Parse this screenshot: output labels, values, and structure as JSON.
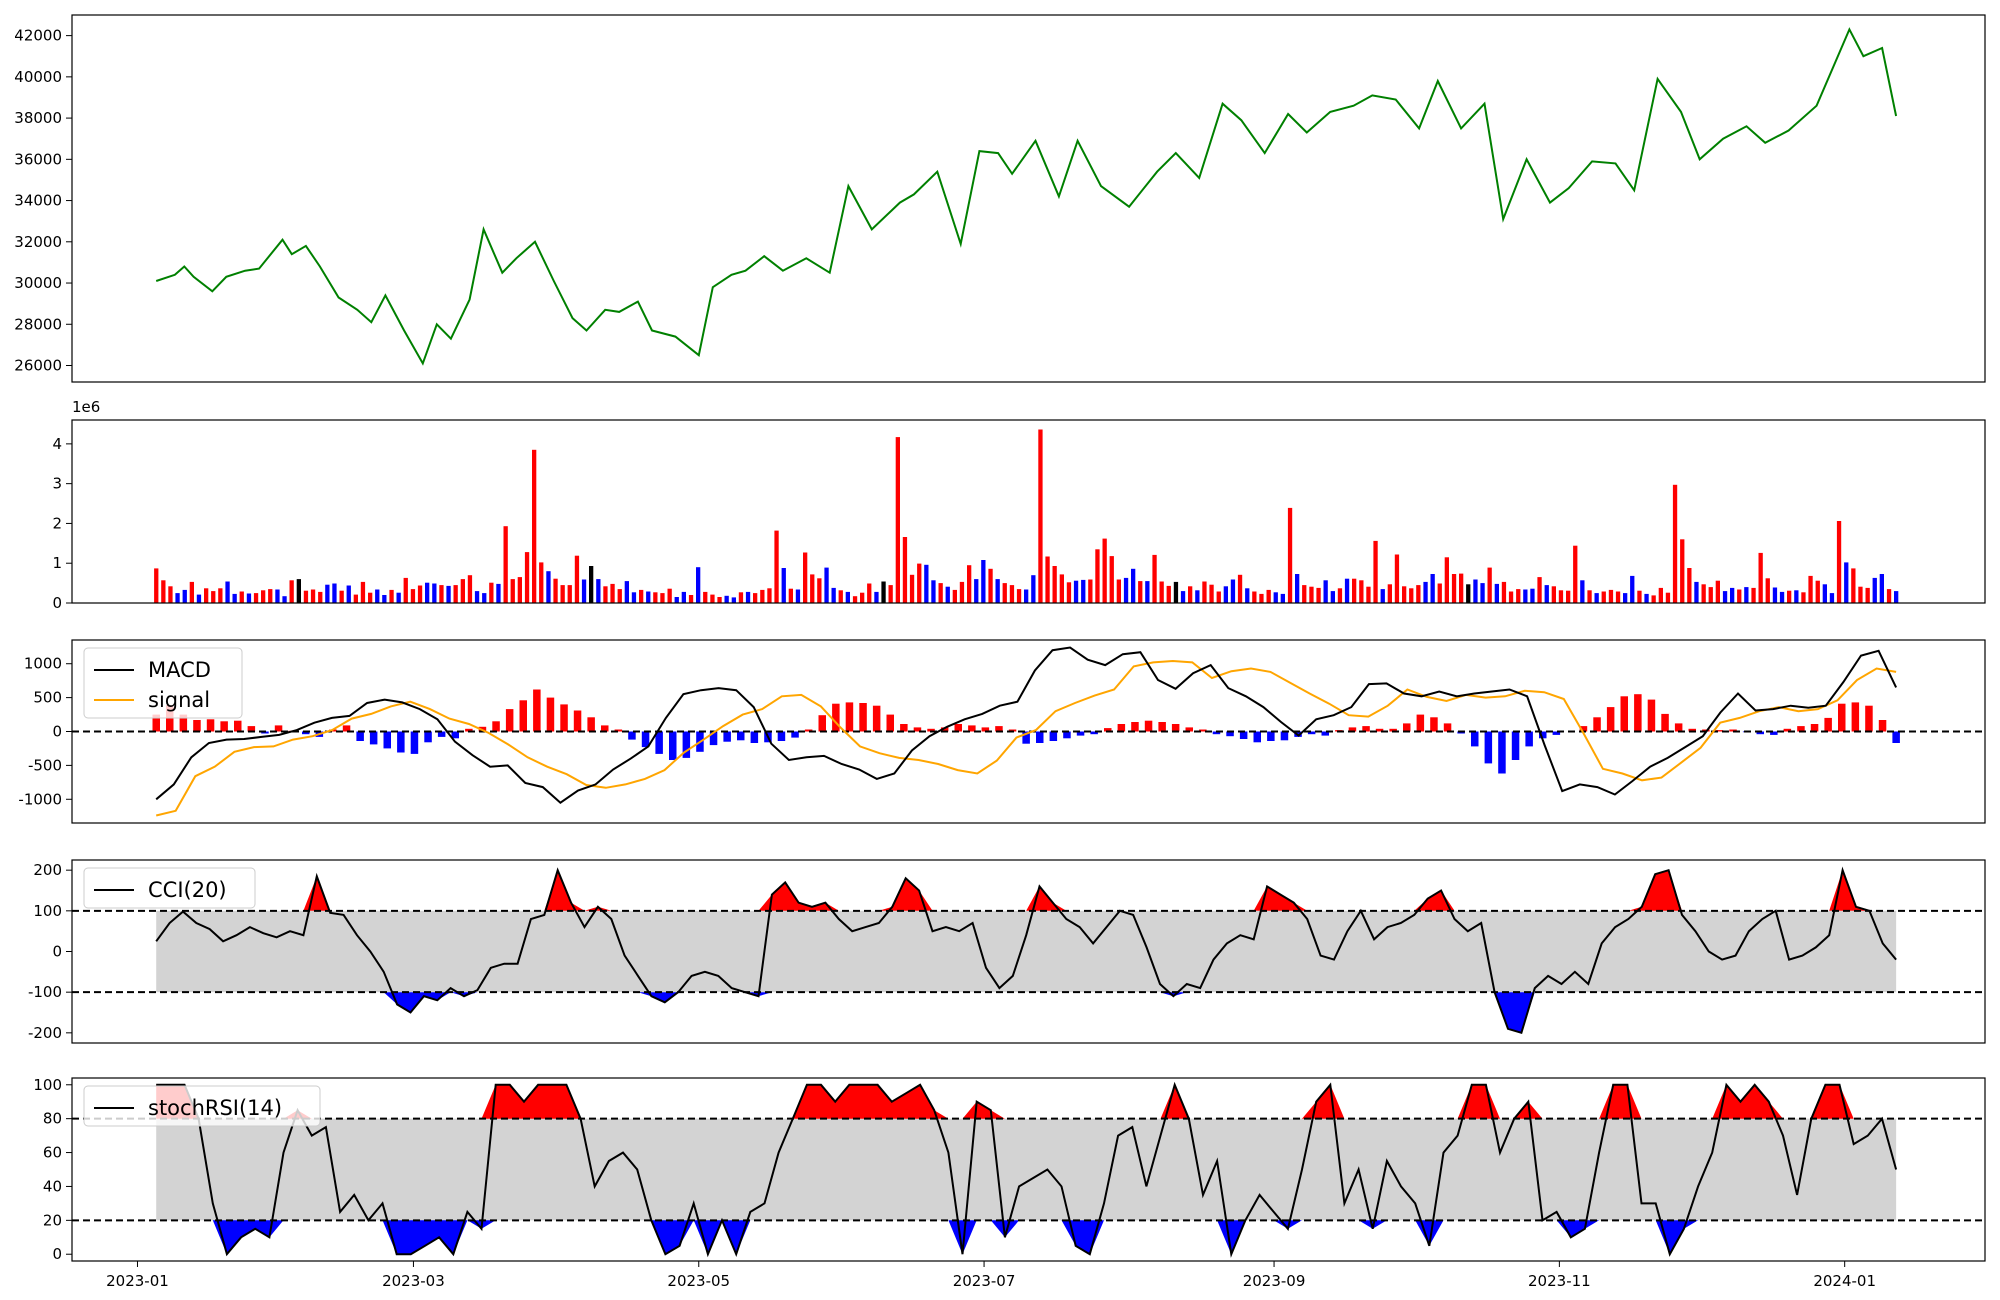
{
  "chart_data": [
    {
      "type": "line",
      "name": "price",
      "ylim": [
        25200,
        43000
      ],
      "yticks": [
        26000,
        28000,
        30000,
        32000,
        34000,
        36000,
        38000,
        40000,
        42000
      ],
      "color": "#008000",
      "series": [
        {
          "x": [
            "2023-01-05",
            "2023-01-09",
            "2023-01-11",
            "2023-01-13",
            "2023-01-17",
            "2023-01-20",
            "2023-01-24",
            "2023-01-27",
            "2023-02-01",
            "2023-02-03",
            "2023-02-06",
            "2023-02-09",
            "2023-02-13",
            "2023-02-17",
            "2023-02-20",
            "2023-02-23",
            "2023-02-27",
            "2023-03-03",
            "2023-03-06",
            "2023-03-09",
            "2023-03-13",
            "2023-03-16",
            "2023-03-20",
            "2023-03-23",
            "2023-03-27",
            "2023-03-31",
            "2023-04-04",
            "2023-04-07",
            "2023-04-11",
            "2023-04-14",
            "2023-04-18",
            "2023-04-21",
            "2023-04-26",
            "2023-05-01",
            "2023-05-04",
            "2023-05-08",
            "2023-05-11",
            "2023-05-15",
            "2023-05-19",
            "2023-05-24",
            "2023-05-29",
            "2023-06-02",
            "2023-06-07",
            "2023-06-13",
            "2023-06-16",
            "2023-06-21",
            "2023-06-26",
            "2023-06-30",
            "2023-07-04",
            "2023-07-07",
            "2023-07-12",
            "2023-07-17",
            "2023-07-21",
            "2023-07-26",
            "2023-08-01",
            "2023-08-07",
            "2023-08-11",
            "2023-08-16",
            "2023-08-21",
            "2023-08-25",
            "2023-08-30",
            "2023-09-04",
            "2023-09-08",
            "2023-09-13",
            "2023-09-18",
            "2023-09-22",
            "2023-09-27",
            "2023-10-02",
            "2023-10-06",
            "2023-10-11",
            "2023-10-16",
            "2023-10-20",
            "2023-10-25",
            "2023-10-30",
            "2023-11-03",
            "2023-11-08",
            "2023-11-13",
            "2023-11-17",
            "2023-11-22",
            "2023-11-27",
            "2023-12-01",
            "2023-12-06",
            "2023-12-11",
            "2023-12-15",
            "2023-12-20",
            "2023-12-26",
            "2024-01-02",
            "2024-01-05",
            "2024-01-09",
            "2024-01-12"
          ],
          "y": [
            30100,
            30400,
            30800,
            30300,
            29600,
            30300,
            30600,
            30700,
            32100,
            31400,
            31800,
            30800,
            29300,
            28700,
            28100,
            29400,
            27700,
            26100,
            28000,
            27300,
            29200,
            32600,
            30500,
            31200,
            32000,
            30100,
            28300,
            27700,
            28700,
            28600,
            29100,
            27700,
            27400,
            26500,
            29800,
            30400,
            30600,
            31300,
            30600,
            31200,
            30500,
            34700,
            32600,
            33900,
            34300,
            35400,
            31900,
            36400,
            36300,
            35300,
            36900,
            34200,
            36900,
            34700,
            33700,
            35400,
            36300,
            35100,
            38700,
            37900,
            36300,
            38200,
            37300,
            38300,
            38600,
            39100,
            38900,
            37500,
            39800,
            37500,
            38700,
            33100,
            36000,
            33900,
            34600,
            35900,
            35800,
            34500,
            39900,
            38300,
            36000,
            37000,
            37600,
            36800,
            37400,
            38600,
            42300,
            41000,
            41400,
            38100
          ]
        }
      ]
    },
    {
      "type": "bar",
      "name": "volume",
      "scale_label": "1e6",
      "ylim": [
        0,
        4.6
      ],
      "yticks": [
        0,
        1,
        2,
        3,
        4
      ],
      "colors": {
        "up": "#ff0000",
        "down": "#0000ff",
        "flat": "#000000"
      },
      "values": [
        0.87,
        0.57,
        0.42,
        0.25,
        0.33,
        0.53,
        0.21,
        0.37,
        0.3,
        0.37,
        0.54,
        0.23,
        0.29,
        0.24,
        0.25,
        0.32,
        0.35,
        0.34,
        0.17,
        0.57,
        0.6,
        0.31,
        0.34,
        0.28,
        0.46,
        0.49,
        0.31,
        0.44,
        0.21,
        0.53,
        0.26,
        0.34,
        0.2,
        0.33,
        0.26,
        0.63,
        0.35,
        0.44,
        0.51,
        0.49,
        0.45,
        0.43,
        0.45,
        0.6,
        0.7,
        0.3,
        0.25,
        0.51,
        0.48,
        1.93,
        0.6,
        0.65,
        1.28,
        3.85,
        1.02,
        0.8,
        0.61,
        0.45,
        0.45,
        1.19,
        0.59,
        0.93,
        0.6,
        0.42,
        0.48,
        0.35,
        0.55,
        0.27,
        0.33,
        0.29,
        0.27,
        0.25,
        0.36,
        0.15,
        0.28,
        0.2,
        0.9,
        0.28,
        0.21,
        0.15,
        0.18,
        0.14,
        0.27,
        0.28,
        0.25,
        0.33,
        0.37,
        1.82,
        0.88,
        0.36,
        0.34,
        1.27,
        0.72,
        0.62,
        0.89,
        0.38,
        0.32,
        0.28,
        0.17,
        0.26,
        0.49,
        0.28,
        0.54,
        0.45,
        4.17,
        1.66,
        0.71,
        0.99,
        0.96,
        0.57,
        0.5,
        0.41,
        0.33,
        0.53,
        0.95,
        0.6,
        1.08,
        0.86,
        0.6,
        0.5,
        0.45,
        0.35,
        0.34,
        0.7,
        4.36,
        1.17,
        0.93,
        0.72,
        0.52,
        0.56,
        0.58,
        0.59,
        1.35,
        1.62,
        1.18,
        0.59,
        0.63,
        0.86,
        0.55,
        0.55,
        1.21,
        0.54,
        0.43,
        0.53,
        0.3,
        0.42,
        0.32,
        0.54,
        0.46,
        0.29,
        0.42,
        0.59,
        0.71,
        0.37,
        0.29,
        0.23,
        0.33,
        0.27,
        0.23,
        2.39,
        0.73,
        0.45,
        0.41,
        0.38,
        0.57,
        0.3,
        0.37,
        0.61,
        0.61,
        0.57,
        0.41,
        1.56,
        0.35,
        0.47,
        1.22,
        0.42,
        0.37,
        0.45,
        0.53,
        0.73,
        0.49,
        1.15,
        0.73,
        0.74,
        0.47,
        0.59,
        0.5,
        0.89,
        0.48,
        0.53,
        0.29,
        0.35,
        0.34,
        0.36,
        0.65,
        0.45,
        0.42,
        0.32,
        0.31,
        1.44,
        0.57,
        0.32,
        0.25,
        0.29,
        0.33,
        0.29,
        0.25,
        0.68,
        0.31,
        0.23,
        0.19,
        0.38,
        0.26,
        2.97,
        1.6,
        0.88,
        0.53,
        0.47,
        0.4,
        0.56,
        0.3,
        0.38,
        0.34,
        0.4,
        0.38,
        1.26,
        0.62,
        0.39,
        0.28,
        0.31,
        0.32,
        0.27,
        0.68,
        0.56,
        0.47,
        0.25,
        2.06,
        1.02,
        0.87,
        0.41,
        0.38,
        0.63,
        0.73,
        0.35,
        0.3
      ],
      "direction": "updnupdnupdnupdnupdnupdnupdnupdnupdnupdn"
    },
    {
      "type": "line",
      "name": "macd",
      "ylim": [
        -1350,
        1350
      ],
      "yticks": [
        -1000,
        -500,
        0,
        500,
        1000
      ],
      "legend": [
        "MACD",
        "signal"
      ],
      "colors": {
        "macd": "#000000",
        "signal": "#ffa500",
        "hist_pos": "#ff0000",
        "hist_neg": "#0000ff"
      },
      "series": [
        {
          "name": "MACD",
          "values": [
            -1000,
            -780,
            -380,
            -170,
            -120,
            -110,
            -80,
            -50,
            20,
            130,
            200,
            230,
            420,
            470,
            430,
            330,
            180,
            -150,
            -350,
            -520,
            -500,
            -760,
            -820,
            -1050,
            -870,
            -780,
            -560,
            -400,
            -220,
            200,
            550,
            610,
            640,
            610,
            360,
            -180,
            -420,
            -380,
            -360,
            -480,
            -560,
            -700,
            -620,
            -280,
            -70,
            70,
            180,
            260,
            380,
            440,
            900,
            1200,
            1240,
            1060,
            980,
            1140,
            1170,
            760,
            630,
            860,
            980,
            640,
            520,
            360,
            140,
            -60,
            180,
            240,
            360,
            700,
            710,
            560,
            520,
            590,
            520,
            560,
            590,
            620,
            520,
            -200,
            -880,
            -780,
            -820,
            -930,
            -730,
            -520,
            -390,
            -230,
            -70,
            280,
            560,
            310,
            330,
            380,
            350,
            380,
            730,
            1120,
            1190,
            650
          ]
        },
        {
          "name": "signal",
          "values": [
            -1240,
            -1170,
            -660,
            -520,
            -300,
            -230,
            -220,
            -120,
            -70,
            20,
            190,
            260,
            370,
            440,
            330,
            190,
            110,
            -20,
            -190,
            -380,
            -520,
            -630,
            -790,
            -830,
            -780,
            -700,
            -570,
            -310,
            -120,
            80,
            250,
            330,
            520,
            540,
            370,
            60,
            -220,
            -320,
            -390,
            -420,
            -480,
            -570,
            -620,
            -430,
            -90,
            20,
            300,
            420,
            530,
            620,
            960,
            1020,
            1040,
            1020,
            790,
            890,
            930,
            880,
            720,
            560,
            410,
            240,
            220,
            380,
            620,
            510,
            450,
            540,
            500,
            520,
            600,
            580,
            480,
            -20,
            -550,
            -620,
            -720,
            -680,
            -460,
            -240,
            130,
            200,
            300,
            360,
            300,
            330,
            460,
            760,
            930,
            880
          ]
        },
        {
          "name": "hist",
          "values": [
            250,
            390,
            250,
            170,
            180,
            150,
            160,
            80,
            -30,
            90,
            10,
            -40,
            -80,
            30,
            90,
            -140,
            -190,
            -250,
            -310,
            -330,
            -160,
            -80,
            -100,
            40,
            70,
            150,
            330,
            460,
            620,
            500,
            400,
            310,
            210,
            90,
            30,
            -120,
            -230,
            -330,
            -420,
            -390,
            -300,
            -200,
            -150,
            -130,
            -170,
            -160,
            -140,
            -90,
            30,
            240,
            410,
            430,
            420,
            380,
            250,
            110,
            60,
            40,
            60,
            110,
            90,
            60,
            80,
            30,
            -180,
            -170,
            -140,
            -100,
            -60,
            -40,
            50,
            110,
            140,
            160,
            140,
            110,
            60,
            30,
            -40,
            -70,
            -110,
            -160,
            -140,
            -130,
            -80,
            -40,
            -60,
            20,
            60,
            80,
            40,
            40,
            120,
            250,
            210,
            120,
            -30,
            -220,
            -470,
            -620,
            -420,
            -220,
            -100,
            -50,
            0,
            80,
            210,
            360,
            520,
            550,
            470,
            260,
            120,
            40,
            30,
            20,
            30,
            -10,
            -40,
            -50,
            40,
            80,
            110,
            200,
            410,
            430,
            380,
            170,
            -170
          ]
        }
      ]
    },
    {
      "type": "line",
      "name": "cci",
      "ylim": [
        -225,
        225
      ],
      "yticks": [
        -200,
        -100,
        0,
        100,
        200
      ],
      "legend": [
        "CCI(20)"
      ],
      "thresholds": [
        100,
        -100
      ],
      "colors": {
        "line": "#000000",
        "over": "#ff0000",
        "under": "#0000ff",
        "band": "#d3d3d3"
      },
      "values": [
        25,
        70,
        98,
        70,
        55,
        25,
        40,
        60,
        45,
        35,
        50,
        40,
        185,
        95,
        90,
        40,
        0,
        -50,
        -130,
        -150,
        -110,
        -120,
        -90,
        -110,
        -95,
        -40,
        -30,
        -30,
        80,
        90,
        200,
        120,
        60,
        110,
        80,
        -10,
        -60,
        -110,
        -125,
        -100,
        -60,
        -50,
        -60,
        -90,
        -100,
        -110,
        140,
        170,
        120,
        110,
        120,
        80,
        50,
        60,
        70,
        110,
        180,
        150,
        50,
        60,
        50,
        70,
        -40,
        -90,
        -60,
        40,
        160,
        120,
        80,
        60,
        20,
        60,
        100,
        90,
        10,
        -80,
        -110,
        -80,
        -90,
        -20,
        20,
        40,
        30,
        160,
        140,
        120,
        80,
        -10,
        -20,
        50,
        100,
        30,
        60,
        70,
        90,
        130,
        150,
        80,
        50,
        70,
        -100,
        -190,
        -200,
        -90,
        -60,
        -80,
        -50,
        -80,
        20,
        60,
        80,
        110,
        190,
        200,
        90,
        50,
        0,
        -20,
        -10,
        50,
        80,
        100,
        -20,
        -10,
        10,
        40,
        200,
        110,
        100,
        20,
        -20
      ]
    },
    {
      "type": "line",
      "name": "stochrsi",
      "ylim": [
        -4,
        104
      ],
      "yticks": [
        0,
        20,
        40,
        60,
        80,
        100
      ],
      "legend": [
        "stochRSI(14)"
      ],
      "thresholds": [
        80,
        20
      ],
      "colors": {
        "line": "#000000",
        "over": "#ff0000",
        "under": "#0000ff",
        "band": "#d3d3d3"
      },
      "values": [
        100,
        100,
        100,
        80,
        30,
        0,
        10,
        15,
        10,
        60,
        85,
        70,
        75,
        25,
        35,
        20,
        30,
        0,
        0,
        5,
        10,
        0,
        25,
        15,
        100,
        100,
        90,
        100,
        100,
        100,
        80,
        40,
        55,
        60,
        50,
        20,
        0,
        5,
        30,
        0,
        20,
        0,
        25,
        30,
        60,
        80,
        100,
        100,
        90,
        100,
        100,
        100,
        90,
        95,
        100,
        85,
        60,
        0,
        90,
        85,
        10,
        40,
        45,
        50,
        40,
        5,
        0,
        30,
        70,
        75,
        40,
        70,
        100,
        80,
        35,
        55,
        0,
        20,
        35,
        25,
        15,
        50,
        90,
        100,
        30,
        50,
        15,
        55,
        40,
        30,
        5,
        60,
        70,
        100,
        100,
        60,
        80,
        90,
        20,
        25,
        10,
        15,
        60,
        100,
        100,
        30,
        30,
        0,
        15,
        40,
        60,
        100,
        90,
        100,
        90,
        70,
        35,
        80,
        100,
        100,
        65,
        70,
        80,
        50
      ]
    }
  ],
  "x_axis": {
    "start": "2023-01-05",
    "end": "2024-01-12",
    "range": [
      "2022-12-18",
      "2024-01-31"
    ],
    "ticks": [
      "2023-01",
      "2023-03",
      "2023-05",
      "2023-07",
      "2023-09",
      "2023-11",
      "2024-01"
    ]
  }
}
